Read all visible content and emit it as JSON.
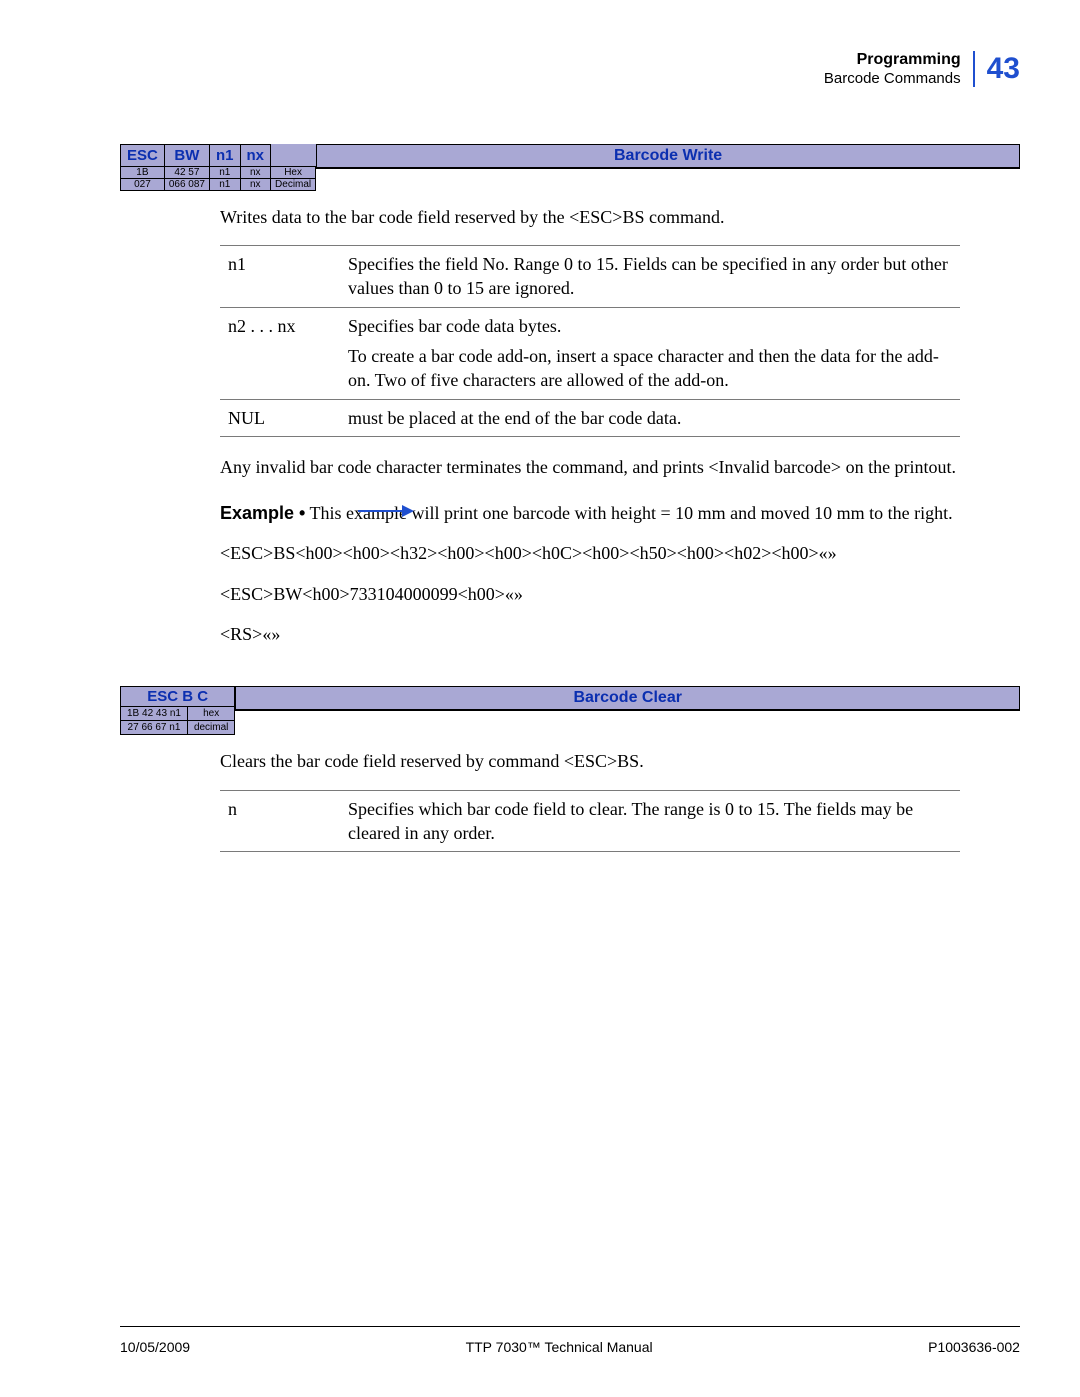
{
  "header": {
    "title": "Programming",
    "subtitle": "Barcode Commands",
    "page_number": "43"
  },
  "barcode_write": {
    "cmd_cells": [
      "ESC",
      "BW",
      "n1",
      "nx"
    ],
    "hex_row": [
      "1B",
      "42 57",
      "n1",
      "nx",
      "Hex"
    ],
    "dec_row": [
      "027",
      "066 087",
      "n1",
      "nx",
      "Decimal"
    ],
    "title": "Barcode Write",
    "intro": "Writes data to the bar code field reserved by the <ESC>BS command.",
    "params": [
      {
        "name": "n1",
        "desc": "Specifies the field No. Range 0 to 15. Fields can be specified in any order but other values than 0 to 15 are ignored."
      },
      {
        "name": "n2 . . . nx",
        "desc": "Specifies bar code data bytes.\nTo create a bar code add-on, insert a space character and then the data for the add-on. Two of five characters are allowed of the add-on."
      },
      {
        "name": "NUL",
        "desc": "must be placed at the end of the bar code data."
      }
    ],
    "note": "Any invalid bar code character terminates the command, and prints <Invalid barcode> on the printout.",
    "example": {
      "label": "Example •",
      "text": "This example will print one barcode with height = 10 mm and moved 10 mm to the right.",
      "line1": "<ESC>BS<h00><h00><h32><h00><h00><h0C><h00><h50><h00><h02><h00>«»",
      "line2": "<ESC>BW<h00>733104000099<h00>«»",
      "line3": "<RS>«»"
    }
  },
  "barcode_clear": {
    "cmd_header": "ESC B C",
    "hex_row": [
      "1B 42 43 n1",
      "hex"
    ],
    "dec_row": [
      "27 66 67 n1",
      "decimal"
    ],
    "title": "Barcode Clear",
    "intro": "Clears the bar code field reserved by command <ESC>BS.",
    "params": [
      {
        "name": "n",
        "desc": "Specifies which bar code field to clear. The range is 0 to 15. The fields may be cleared in any order."
      }
    ]
  },
  "footer": {
    "left": "10/05/2009",
    "center": "TTP 7030™ Technical Manual",
    "right": "P1003636-002"
  }
}
